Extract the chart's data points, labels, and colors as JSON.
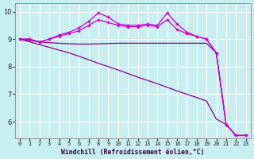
{
  "background_color": "#c8eef0",
  "grid_color": "#ffffff",
  "line_color_bright": "#cc00cc",
  "line_color_dark": "#880088",
  "x_hours": [
    0,
    1,
    2,
    3,
    4,
    5,
    6,
    7,
    8,
    9,
    10,
    11,
    12,
    13,
    14,
    15,
    16,
    17,
    18,
    19,
    20,
    21,
    22,
    23
  ],
  "series_marked1": [
    9.0,
    9.0,
    8.9,
    9.0,
    9.1,
    9.2,
    9.3,
    9.5,
    9.7,
    9.6,
    9.5,
    9.45,
    9.45,
    9.5,
    9.45,
    9.7,
    9.35,
    9.2,
    9.1,
    9.0,
    8.5,
    5.9,
    5.5,
    5.5
  ],
  "series_marked2": [
    9.0,
    9.0,
    8.9,
    9.0,
    9.15,
    9.25,
    9.4,
    9.65,
    9.95,
    9.8,
    9.55,
    9.5,
    9.5,
    9.55,
    9.5,
    9.95,
    9.55,
    9.25,
    9.1,
    9.0,
    8.5,
    5.9,
    5.5,
    5.5
  ],
  "series_flat": [
    9.0,
    8.95,
    8.9,
    8.87,
    8.85,
    8.83,
    8.82,
    8.82,
    8.83,
    8.84,
    8.85,
    8.85,
    8.85,
    8.85,
    8.85,
    8.85,
    8.85,
    8.85,
    8.85,
    8.85,
    8.5,
    5.9,
    5.5,
    5.5
  ],
  "series_diag": [
    9.0,
    8.9,
    8.8,
    8.7,
    8.6,
    8.5,
    8.38,
    8.25,
    8.12,
    8.0,
    7.88,
    7.75,
    7.62,
    7.5,
    7.38,
    7.25,
    7.12,
    7.0,
    6.88,
    6.75,
    6.1,
    5.9,
    5.5,
    5.5
  ],
  "xlabel": "Windchill (Refroidissement éolien,°C)",
  "ylim": [
    5.4,
    10.3
  ],
  "xlim_min": -0.5,
  "xlim_max": 23.5,
  "yticks": [
    6,
    7,
    8,
    9,
    10
  ],
  "xtick_labels": [
    "0",
    "1",
    "2",
    "3",
    "4",
    "5",
    "6",
    "7",
    "8",
    "9",
    "10",
    "11",
    "12",
    "13",
    "14",
    "15",
    "16",
    "17",
    "18",
    "19",
    "20",
    "21",
    "22",
    "23"
  ]
}
